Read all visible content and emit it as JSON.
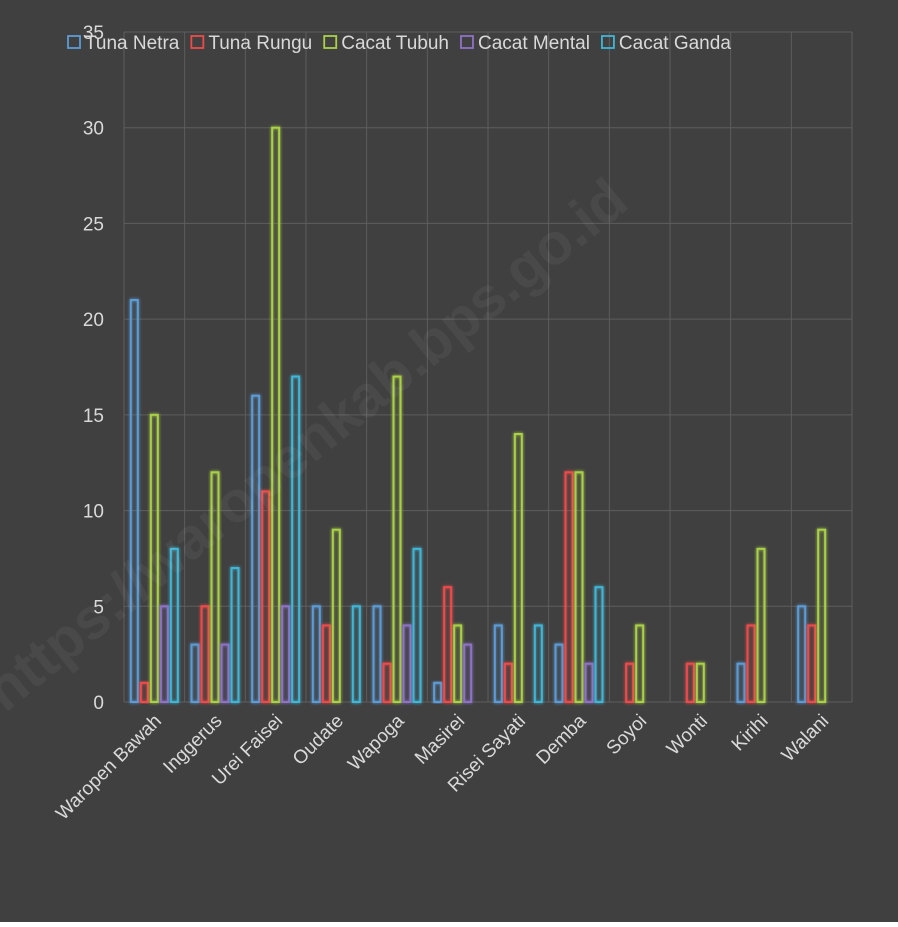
{
  "chart_data": {
    "type": "bar",
    "title": "",
    "xlabel": "",
    "ylabel": "",
    "ylim": [
      0,
      35
    ],
    "yticks": [
      0,
      5,
      10,
      15,
      20,
      25,
      30,
      35
    ],
    "grid": true,
    "legend_position": "top",
    "watermark": "https://waropenkab.bps.go.id",
    "colors": {
      "background": "#404040",
      "grid": "#5e5e5e",
      "text": "#d9d9d9"
    },
    "categories": [
      "Waropen Bawah",
      "Inggerus",
      "Urei Faisei",
      "Oudate",
      "Wapoga",
      "Masirei",
      "Risei Sayati",
      "Demba",
      "Soyoi",
      "Wonti",
      "Kirihi",
      "Walani"
    ],
    "series": [
      {
        "name": "Tuna Netra",
        "color": "#5b9bd5",
        "values": [
          21,
          3,
          16,
          5,
          5,
          1,
          4,
          3,
          0,
          0,
          2,
          5
        ]
      },
      {
        "name": "Tuna Rungu",
        "color": "#ed4b4b",
        "values": [
          1,
          5,
          11,
          4,
          2,
          6,
          2,
          12,
          2,
          2,
          4,
          4
        ]
      },
      {
        "name": "Cacat Tubuh",
        "color": "#a9d046",
        "values": [
          15,
          12,
          30,
          9,
          17,
          4,
          14,
          12,
          4,
          2,
          8,
          9
        ]
      },
      {
        "name": "Cacat Mental",
        "color": "#8e72c5",
        "values": [
          5,
          3,
          5,
          0,
          4,
          3,
          0,
          2,
          0,
          0,
          0,
          0
        ]
      },
      {
        "name": "Cacat Ganda",
        "color": "#3fb6d6",
        "values": [
          8,
          7,
          17,
          5,
          8,
          0,
          4,
          6,
          0,
          0,
          0,
          0
        ]
      }
    ]
  }
}
